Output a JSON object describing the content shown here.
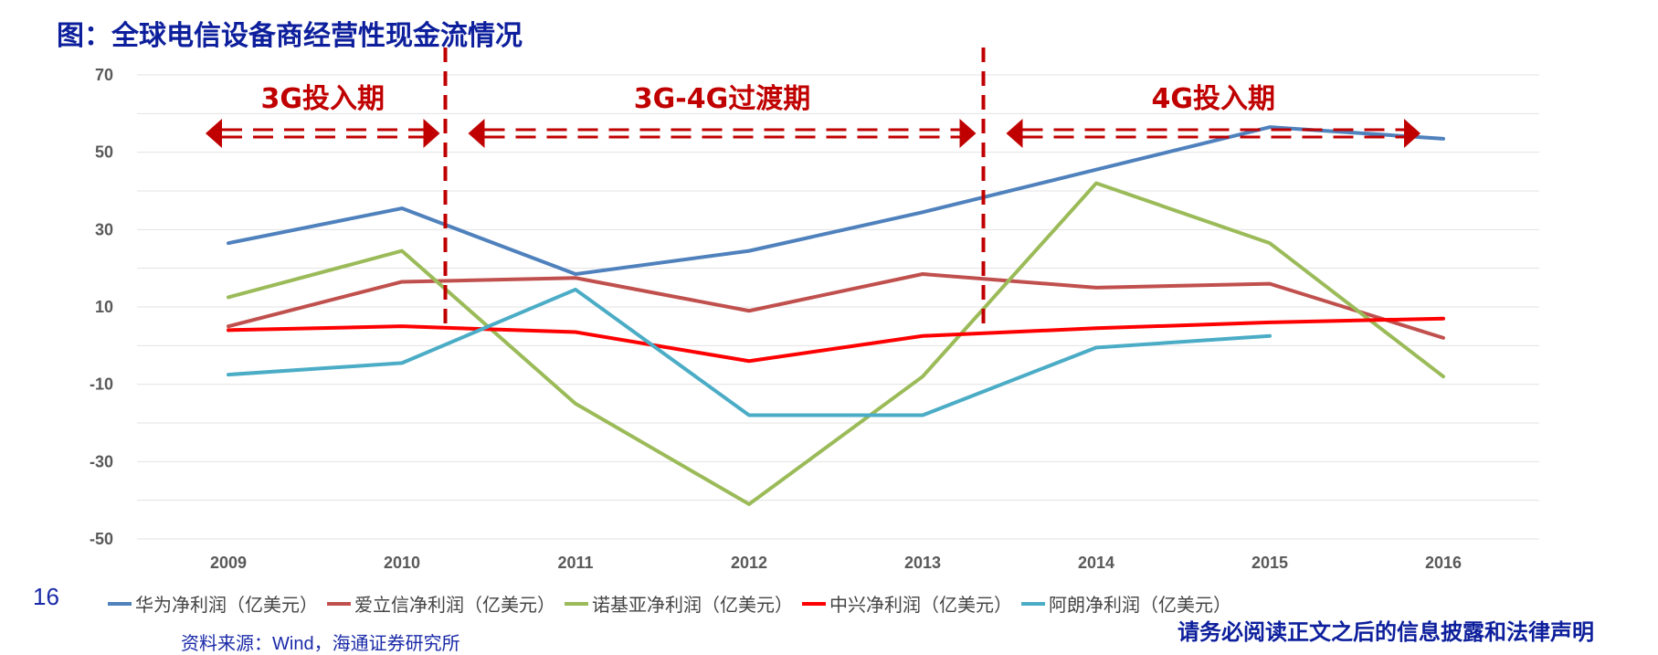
{
  "header": {
    "title": "图：全球电信设备商经营性现金流情况"
  },
  "footer": {
    "page_number": "16",
    "source": "资料来源：Wind，海通证券研究所",
    "disclaimer": "请务必阅读正文之后的信息披露和法律声明"
  },
  "chart_data": {
    "type": "line",
    "title": "",
    "xlabel": "",
    "ylabel": "",
    "categories": [
      "2009",
      "2010",
      "2011",
      "2012",
      "2013",
      "2014",
      "2015",
      "2016"
    ],
    "ylim": [
      -50,
      70
    ],
    "yticks": [
      70,
      50,
      30,
      10,
      -10,
      -30,
      -50
    ],
    "grid": true,
    "legend_position": "bottom",
    "series": [
      {
        "name": "华为净利润（亿美元）",
        "color": "#4f81bd",
        "values": [
          26.5,
          35.5,
          18.5,
          24.5,
          34.5,
          45.5,
          56.5,
          53.5
        ]
      },
      {
        "name": "爱立信净利润（亿美元）",
        "color": "#c0504d",
        "values": [
          5,
          16.5,
          17.5,
          9,
          18.5,
          15,
          16,
          2
        ]
      },
      {
        "name": "诺基亚净利润（亿美元）",
        "color": "#9bbb59",
        "values": [
          12.5,
          24.5,
          -15,
          -41,
          -8,
          42,
          26.5,
          -8
        ]
      },
      {
        "name": "中兴净利润（亿美元）",
        "color": "#ff0000",
        "values": [
          4,
          5,
          3.5,
          -4,
          2.5,
          4.5,
          6,
          7
        ]
      },
      {
        "name": "阿朗净利润（亿美元）",
        "color": "#4bacc6",
        "values": [
          -7.5,
          -4.5,
          14.5,
          -18,
          -18,
          -0.5,
          2.5,
          null
        ]
      }
    ],
    "phases": [
      {
        "label": "3G投入期",
        "from": 2009,
        "to": 2010.25
      },
      {
        "label": "3G-4G过渡期",
        "from": 2010.25,
        "to": 2013.35
      },
      {
        "label": "4G投入期",
        "from": 2013.35,
        "to": 2016
      }
    ],
    "phase_dividers": [
      2010.25,
      2013.35
    ],
    "phase_color": "#c00000"
  }
}
